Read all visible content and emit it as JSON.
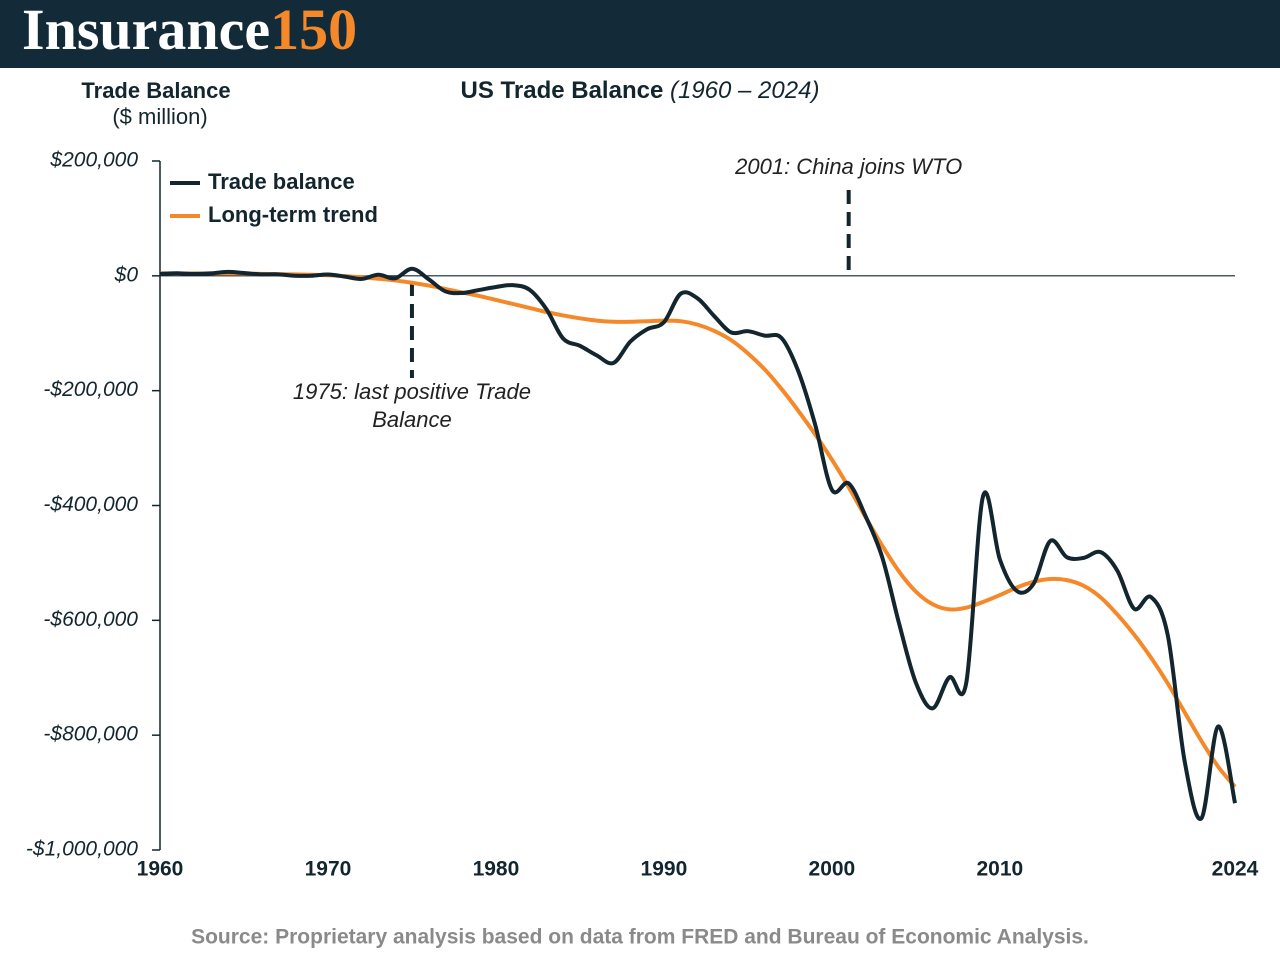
{
  "header": {
    "brand": "Insurance",
    "number": "150"
  },
  "chart_data": {
    "type": "line",
    "title": "US Trade Balance",
    "subtitle": "(1960 – 2024)",
    "y_label": "Trade Balance",
    "y_unit": "($ million)",
    "source": "Source: Proprietary analysis based on data from FRED and Bureau of Economic Analysis.",
    "x": [
      1960,
      1961,
      1962,
      1963,
      1964,
      1965,
      1966,
      1967,
      1968,
      1969,
      1970,
      1971,
      1972,
      1973,
      1974,
      1975,
      1976,
      1977,
      1978,
      1979,
      1980,
      1981,
      1982,
      1983,
      1984,
      1985,
      1986,
      1987,
      1988,
      1989,
      1990,
      1991,
      1992,
      1993,
      1994,
      1995,
      1996,
      1997,
      1998,
      1999,
      2000,
      2001,
      2002,
      2003,
      2004,
      2005,
      2006,
      2007,
      2008,
      2009,
      2010,
      2011,
      2012,
      2013,
      2014,
      2015,
      2016,
      2017,
      2018,
      2019,
      2020,
      2021,
      2022,
      2023,
      2024
    ],
    "series": [
      {
        "name": "Trade balance",
        "color": "#13262f",
        "values": [
          3500,
          4500,
          3400,
          4200,
          6800,
          4900,
          2600,
          2600,
          250,
          90,
          2300,
          -1300,
          -5400,
          1900,
          -4300,
          12400,
          -6100,
          -27200,
          -29800,
          -24600,
          -19400,
          -16200,
          -24200,
          -57800,
          -109100,
          -121900,
          -138500,
          -151700,
          -114600,
          -93100,
          -80900,
          -31100,
          -39200,
          -70300,
          -98500,
          -96400,
          -104100,
          -108300,
          -166100,
          -258600,
          -372500,
          -361500,
          -418200,
          -490500,
          -605400,
          -708600,
          -753300,
          -699100,
          -709000,
          -383800,
          -493800,
          -548600,
          -536800,
          -461900,
          -490300,
          -491200,
          -481200,
          -513800,
          -579900,
          -559400,
          -626400,
          -845000,
          -944800,
          -784900,
          -918400
        ]
      },
      {
        "name": "Long-term trend",
        "color": "#f5892a",
        "values": [
          4000,
          4000,
          4000,
          4200,
          4200,
          4000,
          3500,
          3000,
          2500,
          1800,
          1000,
          -500,
          -2500,
          -5000,
          -8000,
          -12000,
          -17000,
          -23000,
          -29000,
          -35000,
          -42000,
          -49000,
          -56000,
          -63000,
          -69000,
          -74000,
          -78000,
          -80000,
          -80000,
          -79000,
          -78000,
          -79000,
          -85000,
          -96000,
          -112000,
          -135000,
          -163000,
          -197000,
          -235000,
          -276000,
          -320000,
          -368000,
          -420000,
          -470000,
          -515000,
          -550000,
          -572000,
          -581000,
          -578000,
          -568000,
          -556000,
          -543000,
          -533000,
          -528000,
          -530000,
          -540000,
          -560000,
          -590000,
          -625000,
          -665000,
          -710000,
          -760000,
          -810000,
          -855000,
          -890000
        ]
      }
    ],
    "xlim": [
      1960,
      2024
    ],
    "xticks": [
      1960,
      1970,
      1980,
      1990,
      2000,
      2010,
      2024
    ],
    "ylim": [
      -1000000,
      200000
    ],
    "yticks": [
      {
        "value": 200000,
        "label": "$200,000"
      },
      {
        "value": 0,
        "label": "$0"
      },
      {
        "value": -200000,
        "label": "-$200,000"
      },
      {
        "value": -400000,
        "label": "-$400,000"
      },
      {
        "value": -600000,
        "label": "-$600,000"
      },
      {
        "value": -800000,
        "label": "-$800,000"
      },
      {
        "value": -1000000,
        "label": "-$1,000,000"
      }
    ],
    "legend": "upper left",
    "annotations": [
      {
        "text": "2001: China joins WTO",
        "x": 2001
      },
      {
        "text": "1975: last positive Trade Balance",
        "x": 1975
      }
    ]
  }
}
